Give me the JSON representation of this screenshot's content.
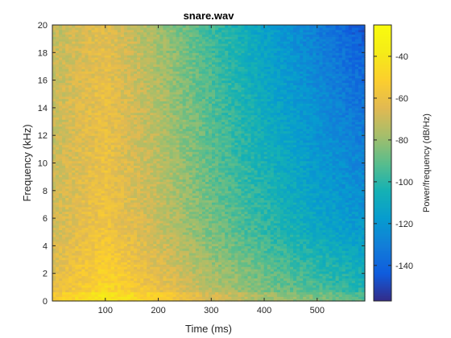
{
  "chart_data": {
    "type": "heatmap",
    "subtype": "spectrogram",
    "title": "snare.wav",
    "xlabel": "Time (ms)",
    "ylabel": "Frequency (kHz)",
    "xlim": [
      0,
      590
    ],
    "ylim": [
      0,
      20
    ],
    "xticks": [
      100,
      200,
      300,
      400,
      500
    ],
    "yticks": [
      0,
      2,
      4,
      6,
      8,
      10,
      12,
      14,
      16,
      18,
      20
    ],
    "colorbar": {
      "label": "Power/frequency (dB/Hz)",
      "limits": [
        -157,
        -25
      ],
      "ticks": [
        -140,
        -120,
        -100,
        -80,
        -60,
        -40
      ],
      "colormap": "parula"
    },
    "grid": false,
    "description_of_values": "Power peaks (~-55 dB/Hz) near 80-110 ms across most frequencies, strongest (~-45 dB/Hz) below 1 kHz; decays with time and with frequency to ~-145 dB/Hz at 20 kHz around 580 ms.",
    "peak_time_ms": 95,
    "value_grid_time_ms": [
      0,
      100,
      200,
      300,
      400,
      500,
      590
    ],
    "value_grid_freq_khz": [
      0,
      5,
      10,
      15,
      20
    ],
    "value_grid_db": [
      [
        -60,
        -45,
        -58,
        -72,
        -82,
        -90,
        -98
      ],
      [
        -68,
        -58,
        -70,
        -85,
        -98,
        -110,
        -118
      ],
      [
        -70,
        -60,
        -73,
        -90,
        -105,
        -118,
        -128
      ],
      [
        -70,
        -61,
        -75,
        -93,
        -110,
        -124,
        -136
      ],
      [
        -72,
        -63,
        -78,
        -96,
        -114,
        -130,
        -145
      ]
    ]
  }
}
